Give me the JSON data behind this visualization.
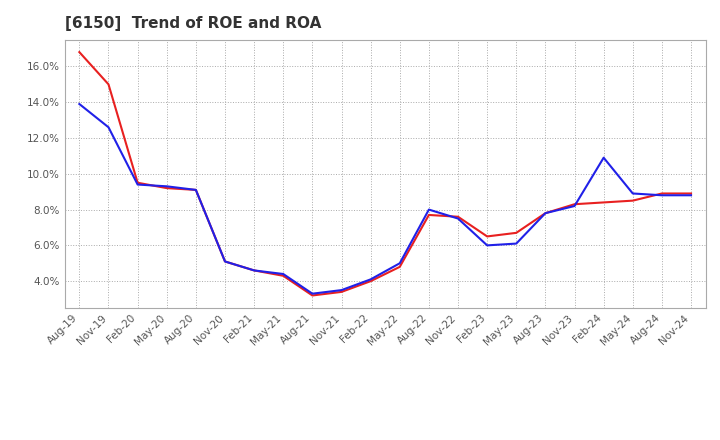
{
  "title": "[6150]  Trend of ROE and ROA",
  "labels": [
    "Aug-19",
    "Nov-19",
    "Feb-20",
    "May-20",
    "Aug-20",
    "Nov-20",
    "Feb-21",
    "May-21",
    "Aug-21",
    "Nov-21",
    "Feb-22",
    "May-22",
    "Aug-22",
    "Nov-22",
    "Feb-23",
    "May-23",
    "Aug-23",
    "Nov-23",
    "Feb-24",
    "May-24",
    "Aug-24",
    "Nov-24"
  ],
  "ROE": [
    16.8,
    15.0,
    9.5,
    9.2,
    9.1,
    5.1,
    4.6,
    4.3,
    3.2,
    3.4,
    4.0,
    4.8,
    7.7,
    7.6,
    6.5,
    6.7,
    7.8,
    8.3,
    8.4,
    8.5,
    8.9,
    8.9
  ],
  "ROA": [
    13.9,
    12.6,
    9.4,
    9.3,
    9.1,
    5.1,
    4.6,
    4.4,
    3.3,
    3.5,
    4.1,
    5.0,
    8.0,
    7.5,
    6.0,
    6.1,
    7.8,
    8.2,
    10.9,
    8.9,
    8.8,
    8.8
  ],
  "roe_color": "#e82020",
  "roa_color": "#2020e8",
  "ylim": [
    2.5,
    17.5
  ],
  "yticks": [
    4.0,
    6.0,
    8.0,
    10.0,
    12.0,
    14.0,
    16.0
  ],
  "background_color": "#ffffff",
  "grid_color": "#aaaaaa",
  "title_fontsize": 11,
  "tick_fontsize": 7.5,
  "legend_fontsize": 9,
  "linewidth": 1.5
}
